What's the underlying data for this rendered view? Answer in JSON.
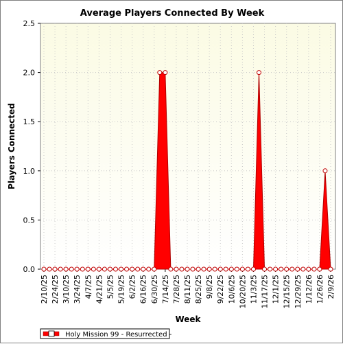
{
  "chart_data": {
    "type": "area",
    "title": "Average Players Connected By Week",
    "xlabel": "Week",
    "ylabel": "Players Connected",
    "ylim": [
      0,
      2.5
    ],
    "yticks": [
      "0.0",
      "0.5",
      "1.0",
      "1.5",
      "2.0",
      "2.5"
    ],
    "grid": true,
    "legend_position": "bottom-left",
    "x_tick_labels": [
      "2/10/25",
      "2/24/25",
      "3/10/25",
      "3/24/25",
      "4/7/25",
      "4/21/25",
      "5/5/25",
      "5/19/25",
      "6/2/25",
      "6/16/25",
      "6/30/25",
      "7/14/25",
      "7/28/25",
      "8/11/25",
      "8/25/25",
      "9/8/25",
      "9/22/25",
      "10/6/25",
      "10/20/25",
      "11/3/25",
      "11/17/25",
      "12/1/25",
      "12/15/25",
      "12/29/25",
      "1/12/26",
      "1/26/26",
      "2/9/26"
    ],
    "x": [
      "2/10/25",
      "2/17/25",
      "2/24/25",
      "3/3/25",
      "3/10/25",
      "3/17/25",
      "3/24/25",
      "3/31/25",
      "4/7/25",
      "4/14/25",
      "4/21/25",
      "4/28/25",
      "5/5/25",
      "5/12/25",
      "5/19/25",
      "5/26/25",
      "6/2/25",
      "6/9/25",
      "6/16/25",
      "6/23/25",
      "6/30/25",
      "7/7/25",
      "7/14/25",
      "7/21/25",
      "7/28/25",
      "8/4/25",
      "8/11/25",
      "8/18/25",
      "8/25/25",
      "9/1/25",
      "9/8/25",
      "9/15/25",
      "9/22/25",
      "9/29/25",
      "10/6/25",
      "10/13/25",
      "10/20/25",
      "10/27/25",
      "11/3/25",
      "11/10/25",
      "11/17/25",
      "11/24/25",
      "12/1/25",
      "12/8/25",
      "12/15/25",
      "12/22/25",
      "12/29/25",
      "1/5/26",
      "1/12/26",
      "1/19/26",
      "1/26/26",
      "2/2/26",
      "2/9/26"
    ],
    "series": [
      {
        "name": "Holy Mission 99 - Resurrected -",
        "color": "#ff0000",
        "values": [
          0,
          0,
          0,
          0,
          0,
          0,
          0,
          0,
          0,
          0,
          0,
          0,
          0,
          0,
          0,
          0,
          0,
          0,
          0,
          0,
          0,
          2,
          2,
          0,
          0,
          0,
          0,
          0,
          0,
          0,
          0,
          0,
          0,
          0,
          0,
          0,
          0,
          0,
          0,
          2,
          0,
          0,
          0,
          0,
          0,
          0,
          0,
          0,
          0,
          0,
          0,
          1,
          0
        ]
      }
    ]
  },
  "colors": {
    "plot_bg_top": "#fbfbe4",
    "plot_bg_bottom": "#ffffff",
    "series": "#ff0000",
    "grid": "#c8c8c8"
  }
}
